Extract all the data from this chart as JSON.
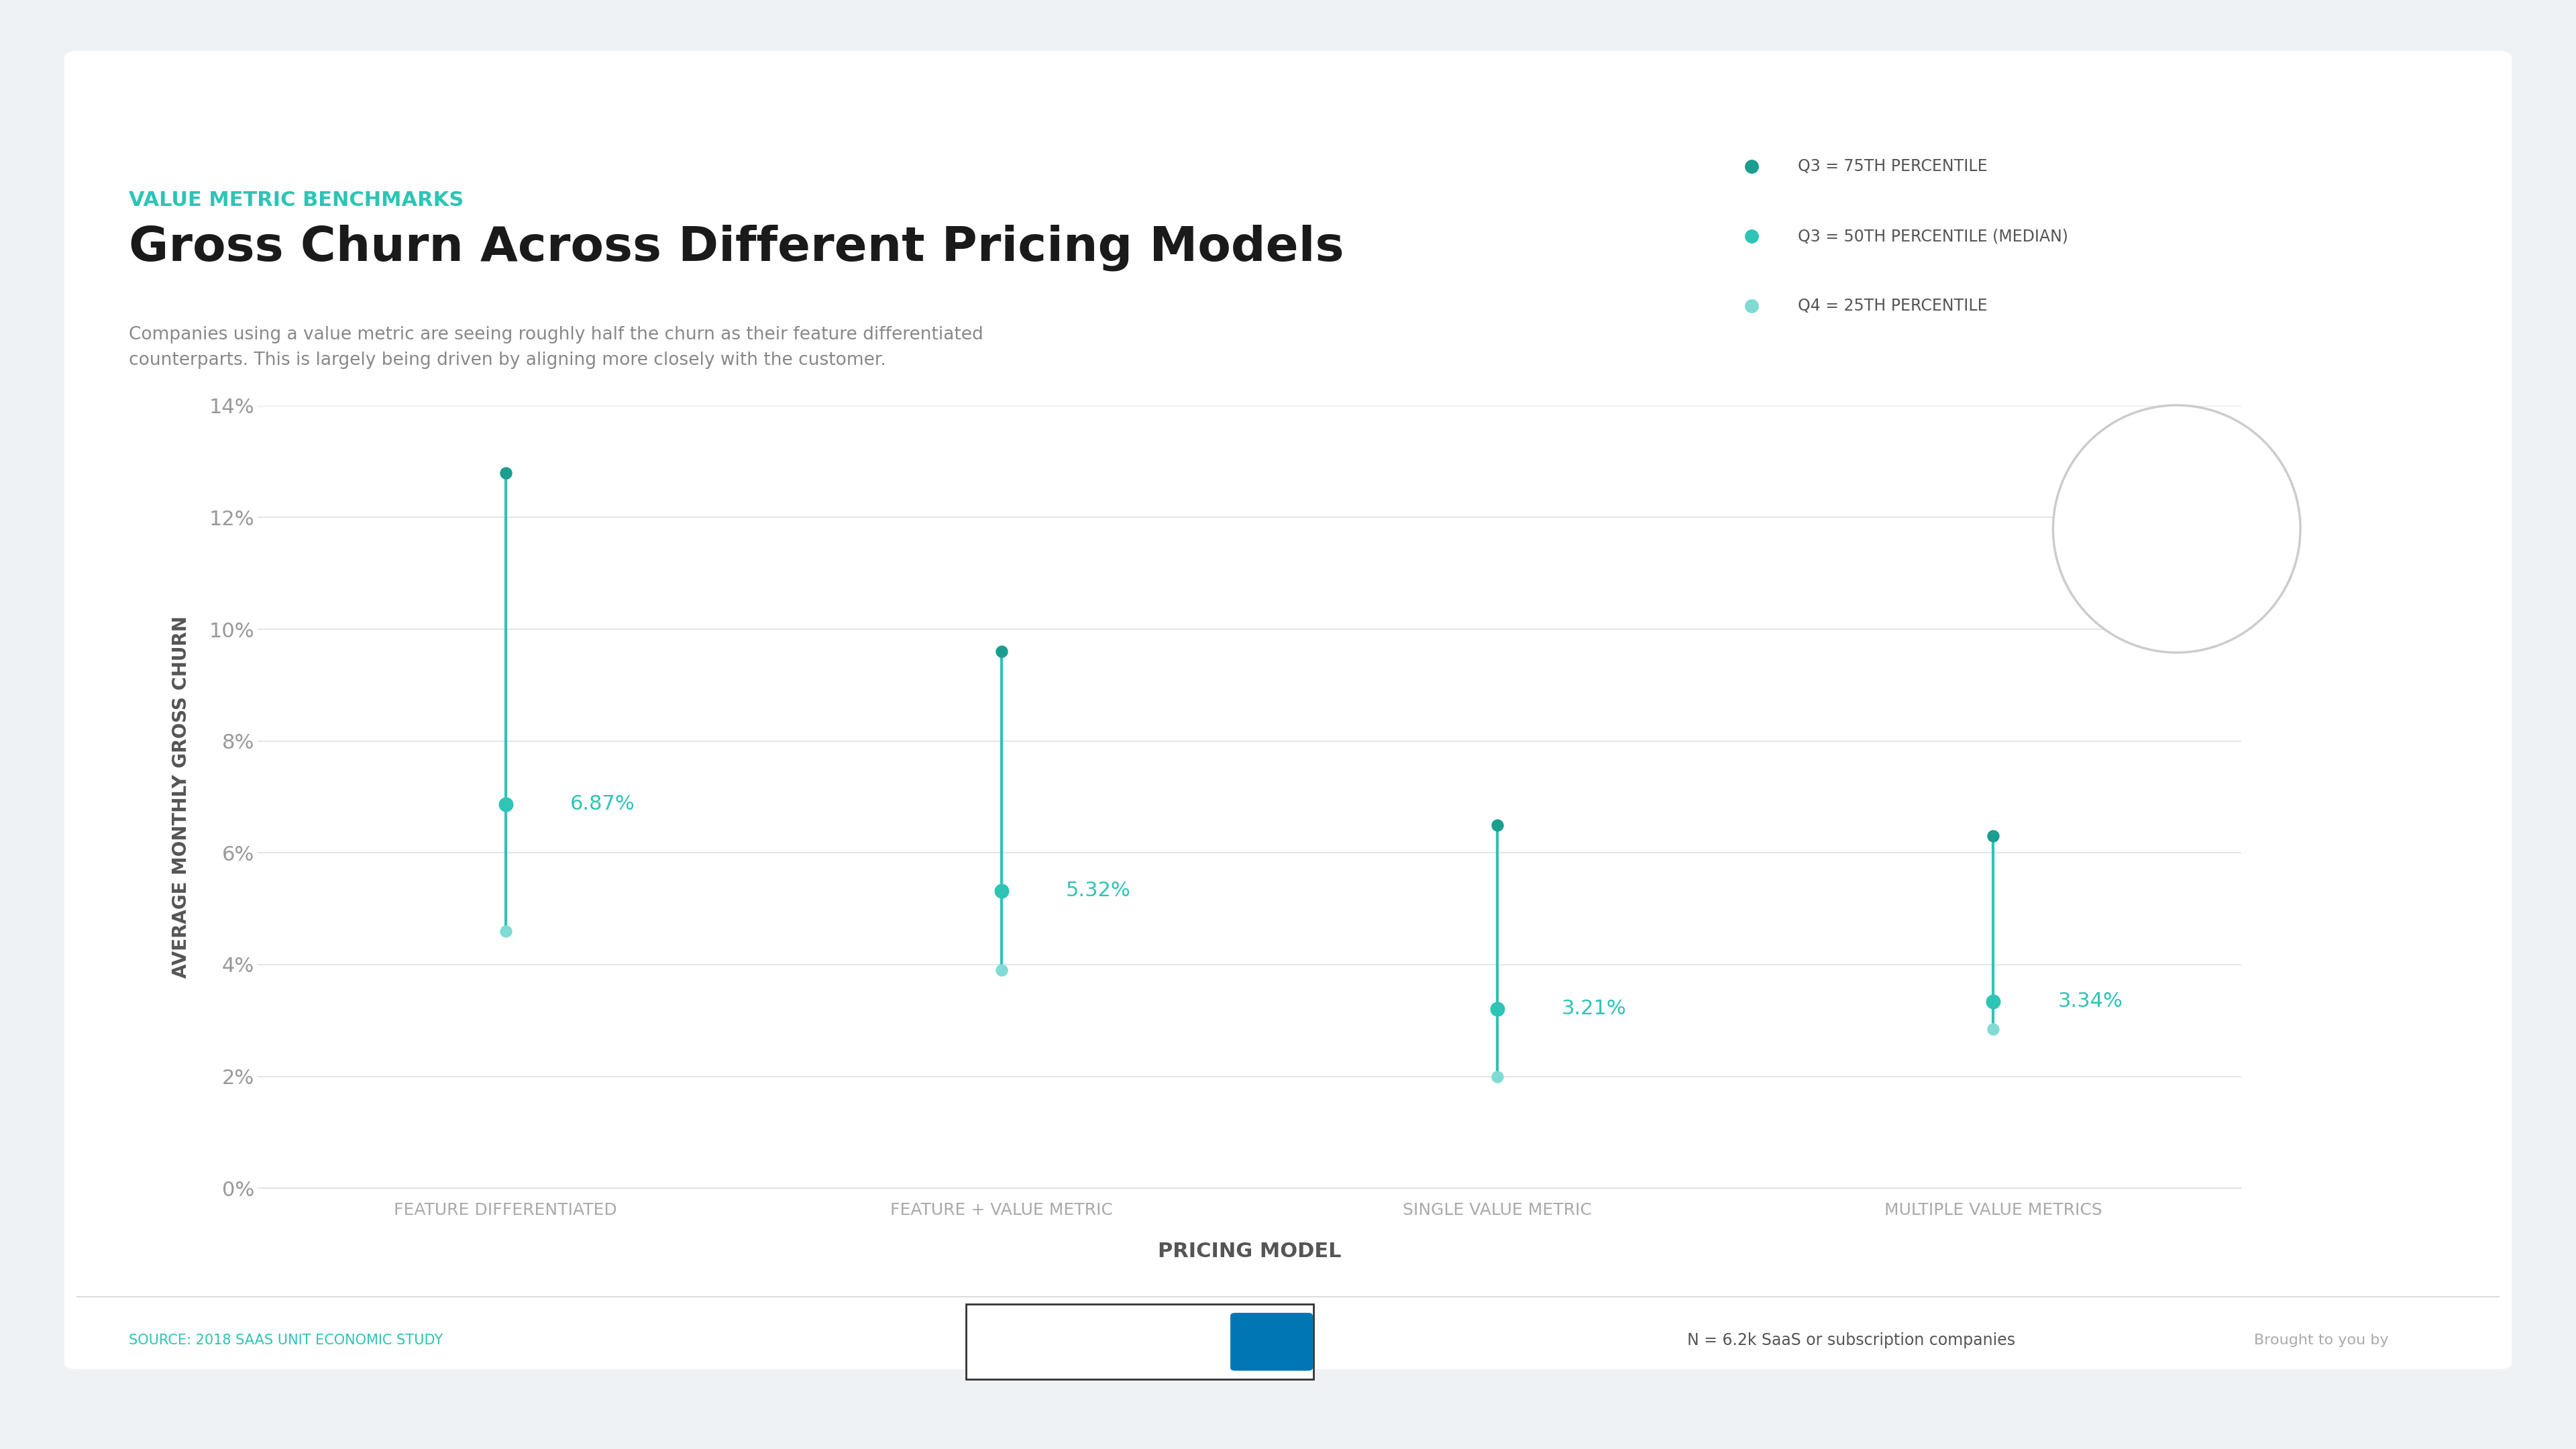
{
  "title": "Gross Churn Across Different Pricing Models",
  "subtitle": "VALUE METRIC BENCHMARKS",
  "description": "Companies using a value metric are seeing roughly half the churn as their feature differentiated\ncounterparts. This is largely being driven by aligning more closely with the customer.",
  "xlabel": "PRICING MODEL",
  "ylabel": "AVERAGE MONTHLY GROSS CHURN",
  "categories": [
    "FEATURE DIFFERENTIATED",
    "FEATURE + VALUE METRIC",
    "SINGLE VALUE METRIC",
    "MULTIPLE VALUE METRICS"
  ],
  "q3_75": [
    12.8,
    9.6,
    6.5,
    6.3
  ],
  "q3_50": [
    6.87,
    5.32,
    3.21,
    3.34
  ],
  "q4_25": [
    4.6,
    3.9,
    2.0,
    2.85
  ],
  "median_labels": [
    "6.87%",
    "5.32%",
    "3.21%",
    "3.34%"
  ],
  "ylim": [
    0,
    14
  ],
  "yticks": [
    0,
    2,
    4,
    6,
    8,
    10,
    12,
    14
  ],
  "ytick_labels": [
    "0%",
    "2%",
    "4%",
    "6%",
    "8%",
    "10%",
    "12%",
    "14%"
  ],
  "color_75": "#1a9e8f",
  "color_50": "#2ec4b6",
  "color_25": "#80dbd4",
  "n_value": "6.2k",
  "legend_75": "Q3 = 75TH PERCENTILE",
  "legend_50": "Q3 = 50TH PERCENTILE (MEDIAN)",
  "legend_25": "Q4 = 25TH PERCENTILE",
  "source": "SOURCE: 2018 SAAS UNIT ECONOMIC STUDY",
  "footnote": "N = 6.2k SaaS or subscription companies",
  "bg_outer": "#eef2f5",
  "bg_inner": "#ffffff",
  "title_color": "#1a1a1a",
  "subtitle_color": "#2ec4b6",
  "axis_label_color": "#555555",
  "grid_color": "#e0e0e0",
  "tick_label_color": "#999999",
  "cat_label_color": "#aaaaaa"
}
